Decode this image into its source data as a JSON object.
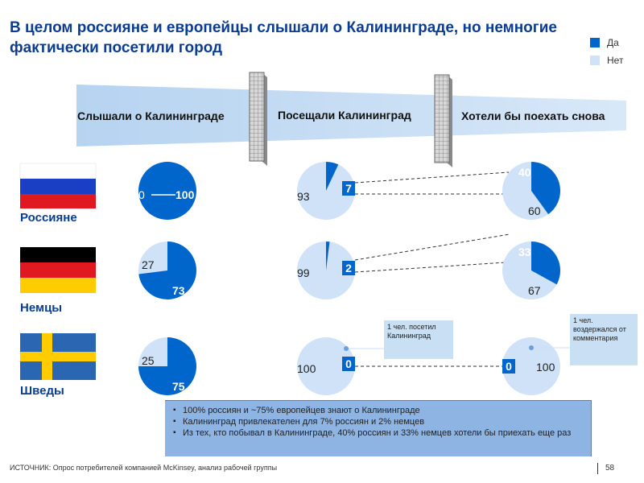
{
  "title": "В целом россияне и европейцы слышали о Калининграде, но немногие фактически посетили город",
  "legend": [
    {
      "label": "Да",
      "color": "#0066cc"
    },
    {
      "label": "Нет",
      "color": "#cfe2f7"
    }
  ],
  "stages": [
    "Слышали о Калининграде",
    "Посещали Калининград",
    "Хотели бы поехать снова"
  ],
  "chart_data": {
    "type": "pie",
    "columns": [
      "Слышали о Калининграде",
      "Посещали Калининград",
      "Хотели бы поехать снова"
    ],
    "series_names": [
      "Да",
      "Нет"
    ],
    "rows": [
      {
        "name": "Россияне",
        "flag": "russia-flag",
        "pies": [
          {
            "yes": 100,
            "no": 0
          },
          {
            "yes": 7,
            "no": 93
          },
          {
            "yes": 40,
            "no": 60
          }
        ]
      },
      {
        "name": "Немцы",
        "flag": "germany-flag",
        "pies": [
          {
            "yes": 73,
            "no": 27
          },
          {
            "yes": 2,
            "no": 99
          },
          {
            "yes": 33,
            "no": 67
          }
        ]
      },
      {
        "name": "Шведы",
        "flag": "sweden-flag",
        "pies": [
          {
            "yes": 75,
            "no": 25
          },
          {
            "yes": 0,
            "no": 100
          },
          {
            "yes": 0,
            "no": 100
          }
        ]
      }
    ]
  },
  "callouts": {
    "visited": "1 чел. посетил Калининград",
    "refrained": "1 чел. воздержался от комментария"
  },
  "summary": [
    "100% россиян и ~75% европейцев знают о Калининграде",
    "Калининград привлекателен для 7% россиян и 2% немцев",
    "Из тех, кто побывал в Калининграде, 40% россиян и 33% немцев хотели бы приехать еще раз"
  ],
  "footer": {
    "source": "ИСТОЧНИК: Опрос потребителей компанией McKinsey, анализ рабочей группы",
    "page": "58"
  },
  "colors": {
    "yes": "#0066cc",
    "no": "#cfe2f7",
    "title": "#0a3d91",
    "funnel": "#bcd8f2",
    "summary": "#8db4e3"
  }
}
